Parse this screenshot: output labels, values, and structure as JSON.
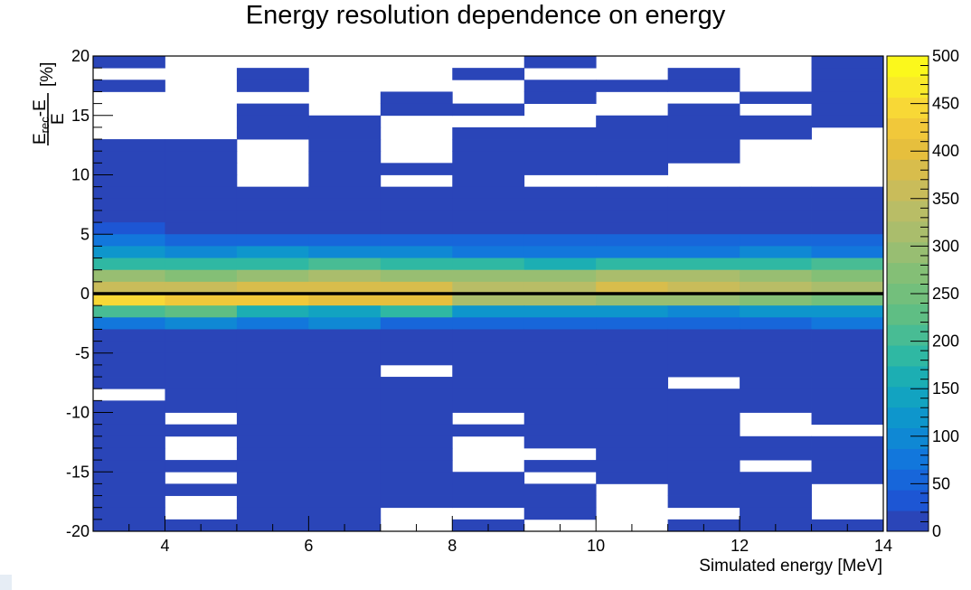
{
  "chart_data": {
    "type": "heatmap",
    "title": "Energy resolution dependence on energy",
    "xlabel": "Simulated energy [MeV]",
    "ylabel": {
      "num_main": "E",
      "num_sub": "rec",
      "num_tail": "-E",
      "den": "E",
      "unit": "[%]"
    },
    "xlim": [
      3,
      14
    ],
    "ylim": [
      -20,
      20
    ],
    "x_bin_width": 1,
    "y_bin_width": 1,
    "x_ticks": [
      4,
      6,
      8,
      10,
      12,
      14
    ],
    "y_ticks": [
      -20,
      -15,
      -10,
      -5,
      0,
      5,
      10,
      15,
      20
    ],
    "x_bin_starts": [
      3,
      4,
      5,
      6,
      7,
      8,
      9,
      10,
      11,
      12,
      13
    ],
    "y_bin_starts": [
      19,
      18,
      17,
      16,
      15,
      14,
      13,
      12,
      11,
      10,
      9,
      8,
      7,
      6,
      5,
      4,
      3,
      2,
      1,
      0,
      -1,
      -2,
      -3,
      -4,
      -5,
      -6,
      -7,
      -8,
      -9,
      -10,
      -11,
      -12,
      -13,
      -14,
      -15,
      -16,
      -17,
      -18,
      -19,
      -20
    ],
    "values": [
      [
        1,
        0,
        0,
        0,
        0,
        0,
        1,
        0,
        0,
        0,
        1
      ],
      [
        0,
        0,
        1,
        0,
        0,
        1,
        0,
        0,
        1,
        0,
        1
      ],
      [
        1,
        0,
        1,
        0,
        0,
        0,
        1,
        1,
        1,
        0,
        1
      ],
      [
        0,
        0,
        0,
        0,
        1,
        0,
        1,
        0,
        0,
        1,
        1
      ],
      [
        0,
        0,
        1,
        0,
        1,
        1,
        0,
        0,
        1,
        0,
        1
      ],
      [
        0,
        0,
        1,
        1,
        0,
        0,
        0,
        1,
        1,
        1,
        1
      ],
      [
        0,
        0,
        1,
        1,
        0,
        1,
        1,
        1,
        1,
        1,
        0
      ],
      [
        1,
        1,
        0,
        1,
        0,
        1,
        1,
        1,
        1,
        0,
        0
      ],
      [
        1,
        1,
        0,
        1,
        0,
        1,
        1,
        1,
        1,
        0,
        0
      ],
      [
        1,
        1,
        0,
        1,
        1,
        1,
        1,
        1,
        0,
        0,
        0
      ],
      [
        1,
        1,
        0,
        1,
        0,
        1,
        0,
        0,
        0,
        0,
        0
      ],
      [
        1,
        1,
        1,
        1,
        1,
        1,
        1,
        1,
        1,
        1,
        1
      ],
      [
        1,
        1,
        1,
        1,
        1,
        1,
        1,
        1,
        1,
        1,
        1
      ],
      [
        2,
        2,
        3,
        2,
        2,
        2,
        3,
        3,
        3,
        3,
        3
      ],
      [
        25,
        20,
        15,
        10,
        8,
        8,
        6,
        8,
        5,
        8,
        15
      ],
      [
        70,
        60,
        60,
        60,
        55,
        50,
        50,
        45,
        50,
        50,
        55
      ],
      [
        110,
        90,
        110,
        100,
        90,
        80,
        80,
        80,
        85,
        100,
        80
      ],
      [
        190,
        180,
        180,
        200,
        185,
        175,
        170,
        175,
        180,
        190,
        210
      ],
      [
        300,
        270,
        300,
        310,
        300,
        290,
        295,
        310,
        320,
        300,
        280
      ],
      [
        350,
        360,
        370,
        380,
        390,
        340,
        330,
        380,
        360,
        330,
        310
      ],
      [
        440,
        430,
        420,
        400,
        410,
        320,
        310,
        300,
        290,
        280,
        260
      ],
      [
        200,
        220,
        160,
        150,
        190,
        120,
        120,
        110,
        100,
        110,
        110
      ],
      [
        80,
        100,
        70,
        90,
        60,
        60,
        60,
        60,
        50,
        60,
        70
      ],
      [
        5,
        5,
        5,
        5,
        5,
        4,
        4,
        4,
        3,
        4,
        4
      ],
      [
        1,
        1,
        1,
        1,
        1,
        1,
        1,
        1,
        1,
        1,
        1
      ],
      [
        1,
        1,
        1,
        1,
        1,
        1,
        1,
        1,
        1,
        1,
        1
      ],
      [
        1,
        1,
        1,
        1,
        0,
        1,
        1,
        1,
        1,
        1,
        1
      ],
      [
        1,
        1,
        1,
        1,
        1,
        1,
        1,
        1,
        0,
        1,
        1
      ],
      [
        0,
        1,
        1,
        1,
        1,
        1,
        1,
        1,
        1,
        1,
        1
      ],
      [
        1,
        1,
        1,
        1,
        1,
        1,
        1,
        1,
        1,
        1,
        1
      ],
      [
        1,
        0,
        1,
        1,
        1,
        0,
        1,
        1,
        1,
        0,
        1
      ],
      [
        1,
        1,
        1,
        1,
        1,
        1,
        1,
        1,
        1,
        0,
        0
      ],
      [
        1,
        0,
        1,
        1,
        1,
        0,
        1,
        1,
        1,
        1,
        1
      ],
      [
        1,
        0,
        1,
        1,
        1,
        0,
        0,
        1,
        1,
        1,
        1
      ],
      [
        1,
        1,
        1,
        1,
        1,
        0,
        1,
        1,
        1,
        0,
        1
      ],
      [
        1,
        0,
        1,
        1,
        1,
        1,
        0,
        1,
        1,
        1,
        1
      ],
      [
        1,
        1,
        1,
        1,
        1,
        1,
        1,
        0,
        1,
        1,
        0
      ],
      [
        1,
        0,
        1,
        1,
        1,
        1,
        1,
        0,
        1,
        1,
        0
      ],
      [
        1,
        0,
        1,
        1,
        0,
        0,
        1,
        0,
        0,
        1,
        0
      ],
      [
        1,
        1,
        1,
        1,
        0,
        1,
        0,
        0,
        1,
        1,
        1
      ]
    ],
    "colorbar": {
      "range": [
        0,
        500
      ],
      "ticks": [
        0,
        50,
        100,
        150,
        200,
        250,
        300,
        350,
        400,
        450,
        500
      ],
      "colors": [
        "#2a45b8",
        "#1d56d4",
        "#1766da",
        "#1277dc",
        "#0f88d4",
        "#0e96cc",
        "#12a3c1",
        "#1caeb3",
        "#2fb8a3",
        "#48bc94",
        "#5fbe84",
        "#73bf7c",
        "#84bf76",
        "#98be72",
        "#aabd6c",
        "#b9bd66",
        "#c9bc5a",
        "#d8bd4c",
        "#e6bf3d",
        "#f1c83a",
        "#f8d836",
        "#f9ea2a",
        "#fbf81c"
      ]
    },
    "reference_line_y": 0,
    "grid": false,
    "legend": "colorbar-right"
  }
}
